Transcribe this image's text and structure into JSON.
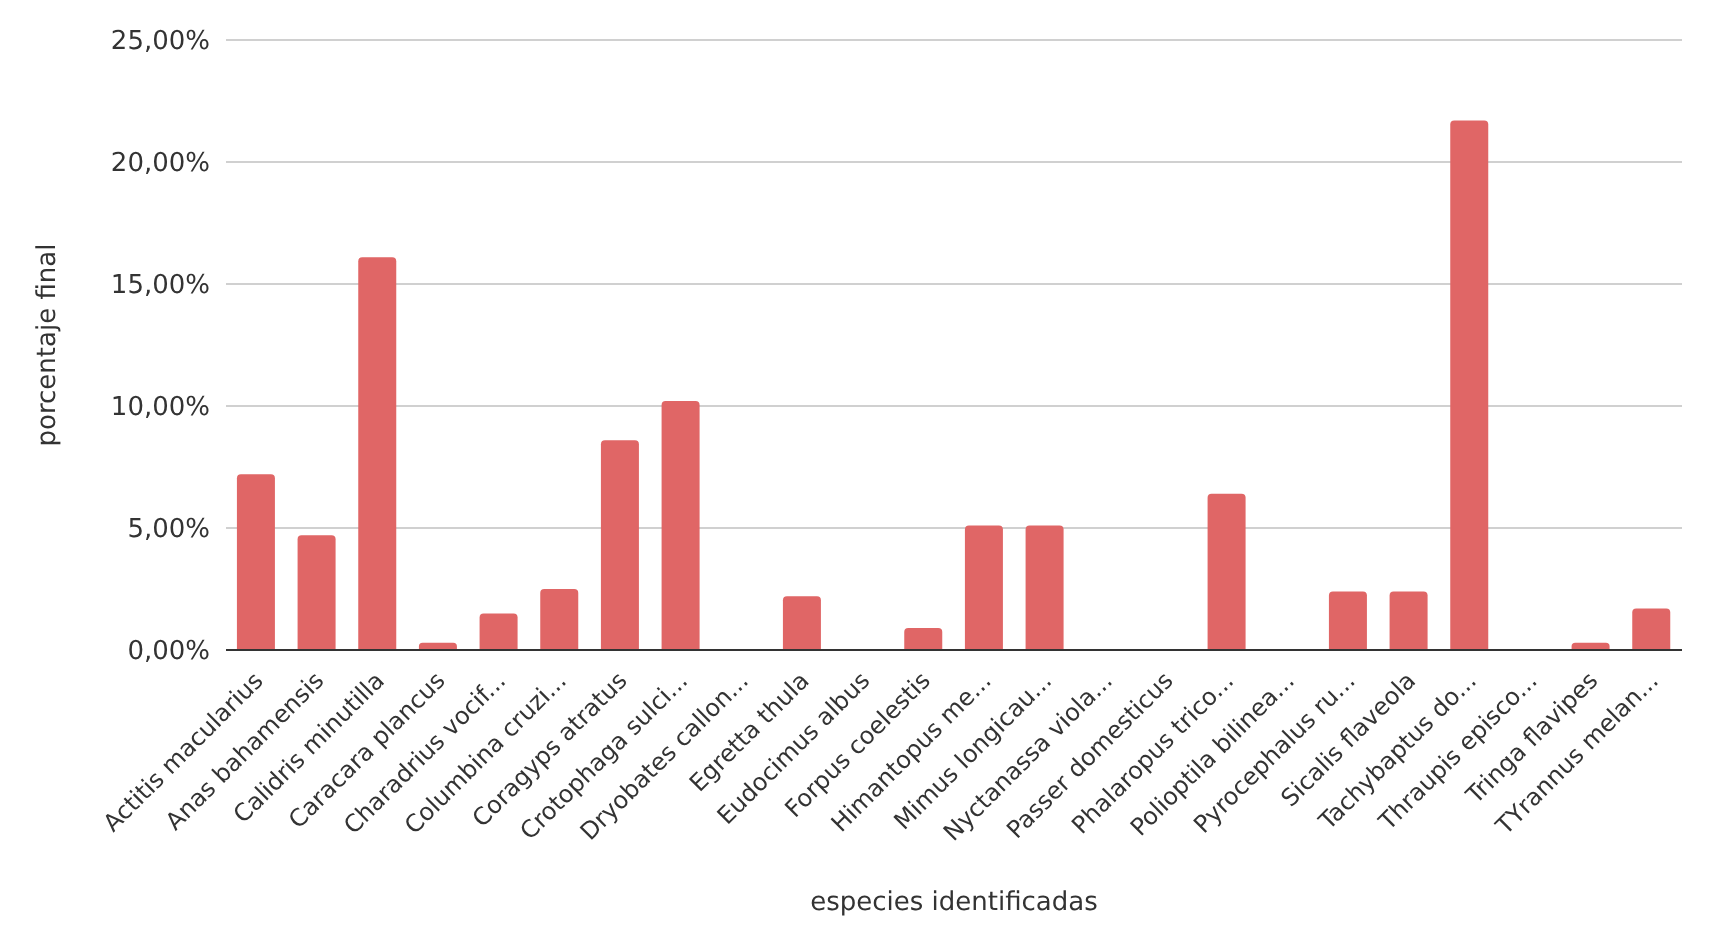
{
  "chart_data": {
    "type": "bar",
    "xlabel": "especies identificadas",
    "ylabel": "porcentaje final",
    "categories": [
      "Actitis macularius",
      "Anas bahamensis",
      "Calidris minutilla",
      "Caracara plancus",
      "Charadrius vocif...",
      "Columbina cruzi...",
      "Coragyps atratus",
      "Crotophaga sulci...",
      "Dryobates callon...",
      "Egretta thula",
      "Eudocimus albus",
      "Forpus coelestis",
      "Himantopus me...",
      "Mimus longicau...",
      "Nyctanassa viola...",
      "Passer domesticus",
      "Phalaropus trico...",
      "Polioptila bilinea...",
      "Pyrocephalus ru...",
      "Sicalis flaveola",
      "Tachybaptus do...",
      "Thraupis episco...",
      "Tringa flavipes",
      "TYrannus melan..."
    ],
    "values": [
      7.2,
      4.7,
      16.1,
      0.3,
      1.5,
      2.5,
      8.6,
      10.2,
      0,
      2.2,
      0,
      0.9,
      5.1,
      5.1,
      0,
      0,
      6.4,
      0,
      2.4,
      2.4,
      21.7,
      0,
      0.3,
      1.7
    ],
    "color": "#e06666",
    "ylim": [
      0,
      25
    ],
    "yticks": [
      {
        "value": 0,
        "label": "0,00%"
      },
      {
        "value": 5,
        "label": "5,00%"
      },
      {
        "value": 10,
        "label": "10,00%"
      },
      {
        "value": 15,
        "label": "15,00%"
      },
      {
        "value": 20,
        "label": "20,00%"
      },
      {
        "value": 25,
        "label": "25,00%"
      }
    ],
    "grid": "y"
  }
}
